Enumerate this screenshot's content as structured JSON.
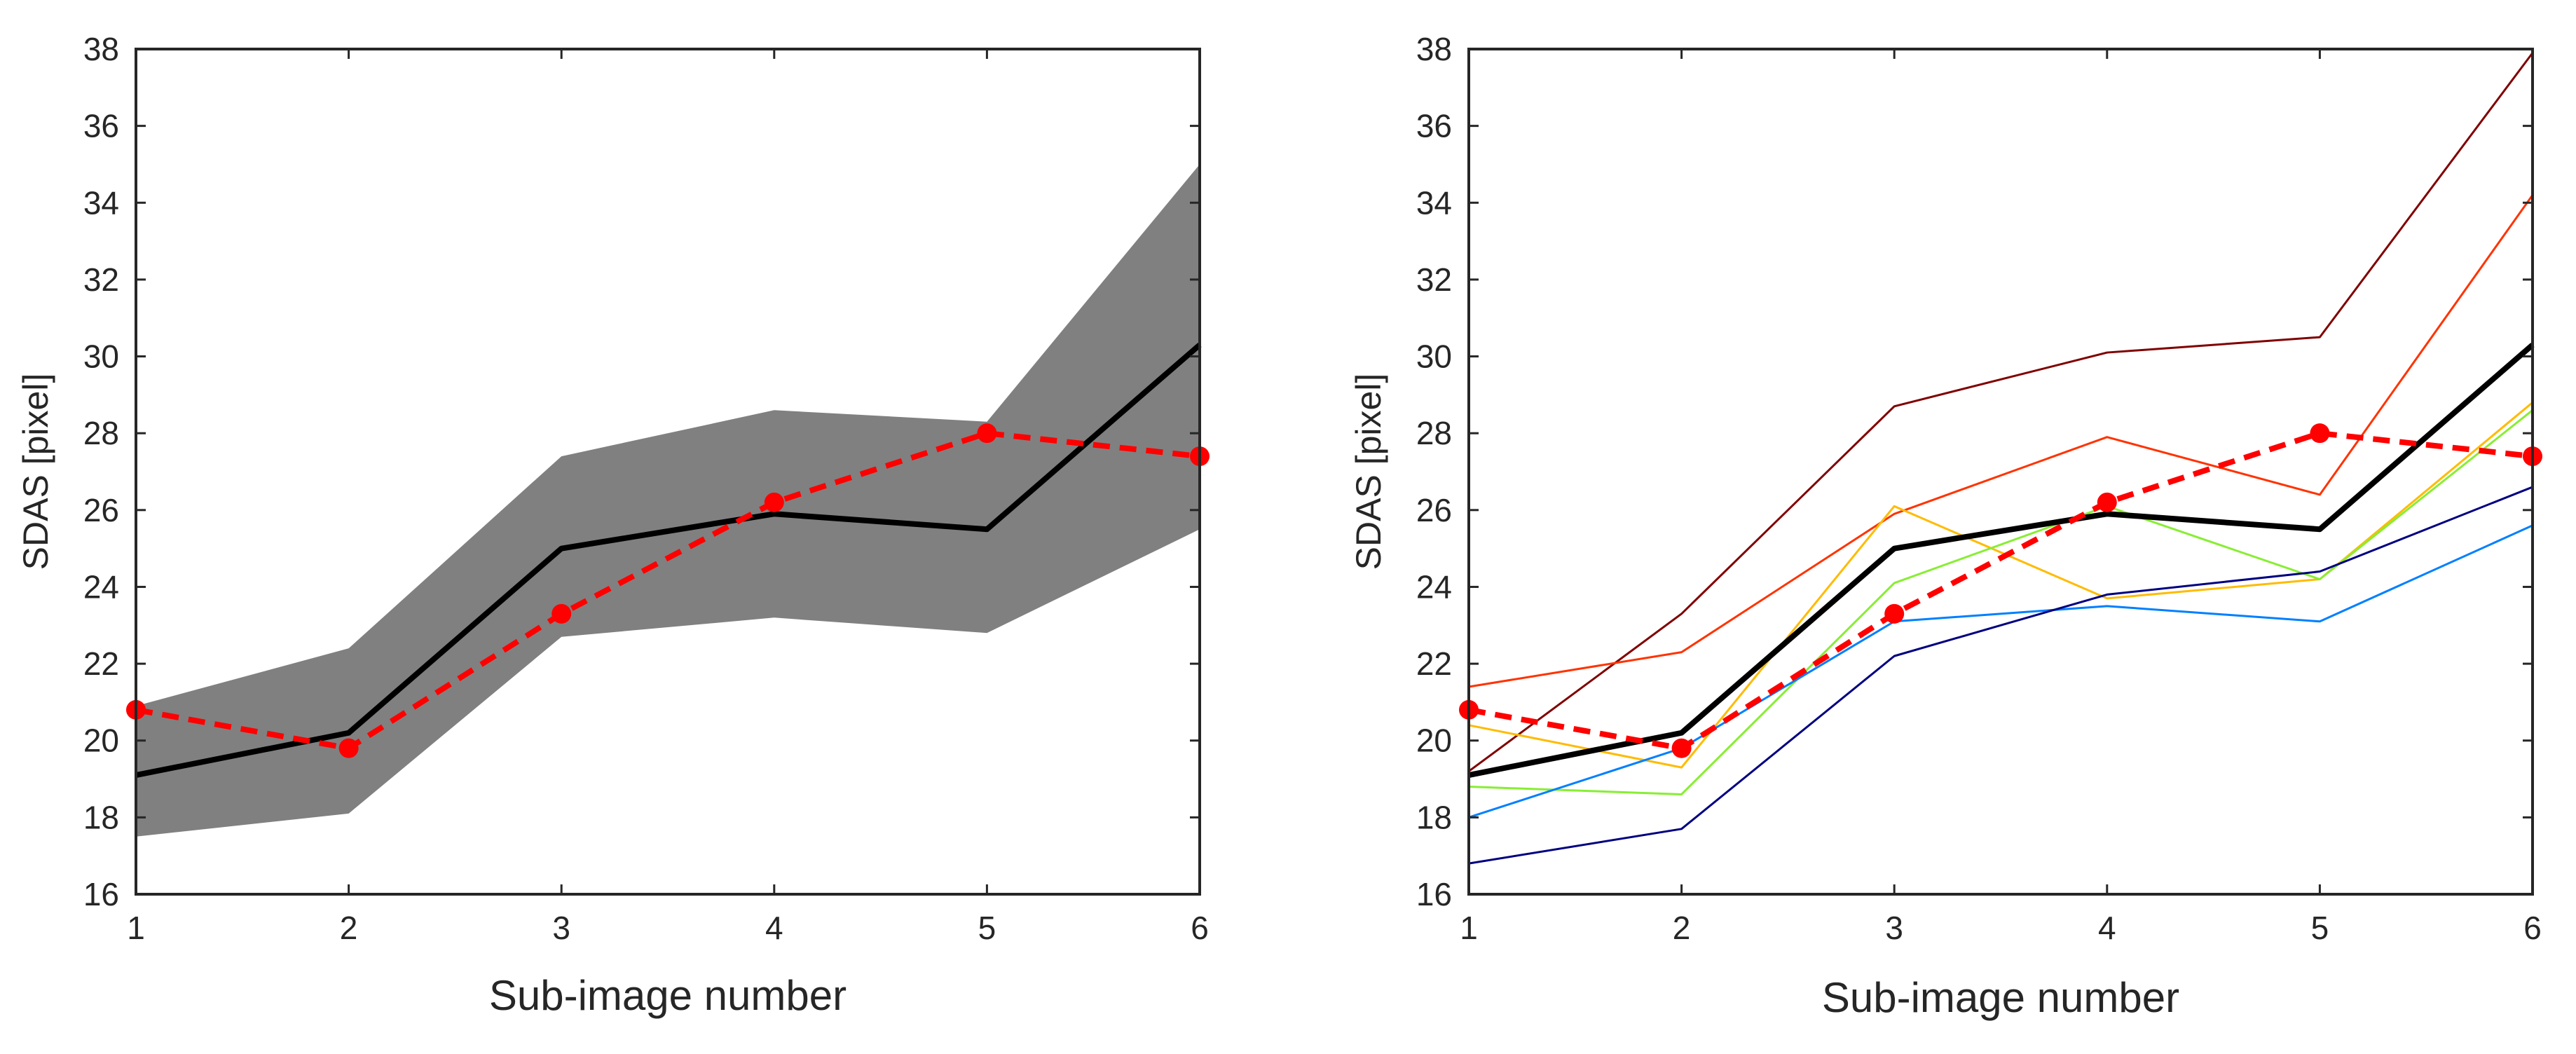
{
  "chart_data": [
    {
      "type": "line",
      "xlabel": "Sub-image number",
      "ylabel": "SDAS [pixel]",
      "xlim": [
        1,
        6
      ],
      "ylim": [
        16,
        38
      ],
      "xticks": [
        "1",
        "2",
        "3",
        "4",
        "5",
        "6"
      ],
      "yticks": [
        "16",
        "18",
        "20",
        "22",
        "24",
        "26",
        "28",
        "30",
        "32",
        "34",
        "36",
        "38"
      ],
      "grid": false,
      "band": {
        "x": [
          1,
          2,
          3,
          4,
          5,
          6
        ],
        "lower": [
          17.5,
          18.1,
          22.7,
          23.2,
          22.8,
          25.5
        ],
        "upper": [
          20.9,
          22.4,
          27.4,
          28.6,
          28.3,
          35.0
        ],
        "color": "#808080"
      },
      "series": [
        {
          "values": [
            19.1,
            20.2,
            25.0,
            25.9,
            25.5,
            30.3
          ],
          "color": "#000000",
          "style": "solid"
        },
        {
          "values": [
            20.8,
            19.8,
            23.3,
            26.2,
            28.0,
            27.4
          ],
          "color": "#ff0000",
          "style": "dashed",
          "markers": true
        }
      ]
    },
    {
      "type": "line",
      "xlabel": "Sub-image number",
      "ylabel": "SDAS [pixel]",
      "xlim": [
        1,
        6
      ],
      "ylim": [
        16,
        38
      ],
      "xticks": [
        "1",
        "2",
        "3",
        "4",
        "5",
        "6"
      ],
      "yticks": [
        "16",
        "18",
        "20",
        "22",
        "24",
        "26",
        "28",
        "30",
        "32",
        "34",
        "36",
        "38"
      ],
      "grid": false,
      "series": [
        {
          "values": [
            19.2,
            23.3,
            28.7,
            30.1,
            30.5,
            37.9
          ],
          "color": "#800000",
          "style": "thin"
        },
        {
          "values": [
            21.4,
            22.3,
            25.9,
            27.9,
            26.4,
            34.2
          ],
          "color": "#ff3300",
          "style": "thin"
        },
        {
          "values": [
            20.4,
            19.3,
            26.1,
            23.7,
            24.2,
            28.8
          ],
          "color": "#ffbb00",
          "style": "thin"
        },
        {
          "values": [
            18.8,
            18.6,
            24.1,
            26.1,
            24.2,
            28.6
          ],
          "color": "#88ee33",
          "style": "thin"
        },
        {
          "values": [
            18.0,
            19.8,
            23.1,
            23.5,
            23.1,
            25.6
          ],
          "color": "#0080ff",
          "style": "thin"
        },
        {
          "values": [
            16.8,
            17.7,
            22.2,
            23.8,
            24.4,
            26.6
          ],
          "color": "#000080",
          "style": "thin"
        },
        {
          "values": [
            19.1,
            20.2,
            25.0,
            25.9,
            25.5,
            30.3
          ],
          "color": "#000000",
          "style": "solid"
        },
        {
          "values": [
            20.8,
            19.8,
            23.3,
            26.2,
            28.0,
            27.4
          ],
          "color": "#ff0000",
          "style": "dashed",
          "markers": true
        }
      ]
    }
  ]
}
